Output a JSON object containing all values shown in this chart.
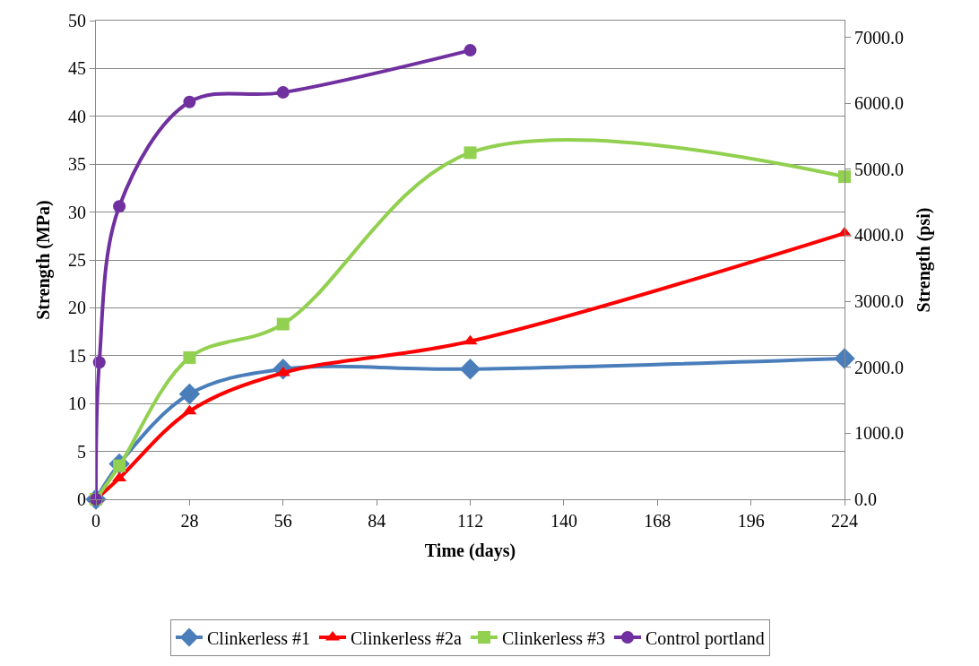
{
  "chart_data": {
    "type": "line",
    "xlabel": "Time (days)",
    "ylabel": "Strength (MPa)",
    "y2label": "Strength (psi)",
    "xlim": [
      0,
      224
    ],
    "xticks": [
      0,
      28,
      56,
      84,
      112,
      140,
      168,
      196,
      224
    ],
    "ylim": [
      0,
      50
    ],
    "yticks": [
      0,
      5,
      10,
      15,
      20,
      25,
      30,
      35,
      40,
      45,
      50
    ],
    "y2lim": [
      0,
      7251.9
    ],
    "y2ticks": [
      {
        "value": 0,
        "label": "0.0"
      },
      {
        "value": 1000,
        "label": "1000.0"
      },
      {
        "value": 2000,
        "label": "2000.0"
      },
      {
        "value": 3000,
        "label": "3000.0"
      },
      {
        "value": 4000,
        "label": "4000.0"
      },
      {
        "value": 5000,
        "label": "5000.0"
      },
      {
        "value": 6000,
        "label": "6000.0"
      },
      {
        "value": 7000,
        "label": "7000.0"
      }
    ],
    "grid": "y",
    "legend": "bottom",
    "line_style": "solid",
    "series": [
      {
        "name": "Clinkerless #1",
        "color": "#4a7ebb",
        "marker": "diamond",
        "x": [
          0,
          7,
          28,
          56,
          112,
          224
        ],
        "values": [
          0,
          3.7,
          11,
          13.6,
          13.6,
          14.7
        ]
      },
      {
        "name": "Clinkerless #2a",
        "color": "#ff0000",
        "marker": "triangle",
        "x": [
          0,
          7,
          28,
          56,
          112,
          224
        ],
        "values": [
          0,
          2.2,
          9.2,
          13.2,
          16.5,
          27.8
        ]
      },
      {
        "name": "Clinkerless #3",
        "color": "#92d050",
        "marker": "square",
        "x": [
          0,
          7,
          28,
          56,
          112,
          224
        ],
        "values": [
          0,
          3.5,
          14.8,
          18.3,
          36.2,
          33.7
        ]
      },
      {
        "name": "Control portland",
        "color": "#7030a0",
        "marker": "circle",
        "x": [
          0,
          1,
          7,
          28,
          56,
          112
        ],
        "values": [
          0,
          14.3,
          30.6,
          41.5,
          42.5,
          46.9
        ]
      }
    ]
  }
}
